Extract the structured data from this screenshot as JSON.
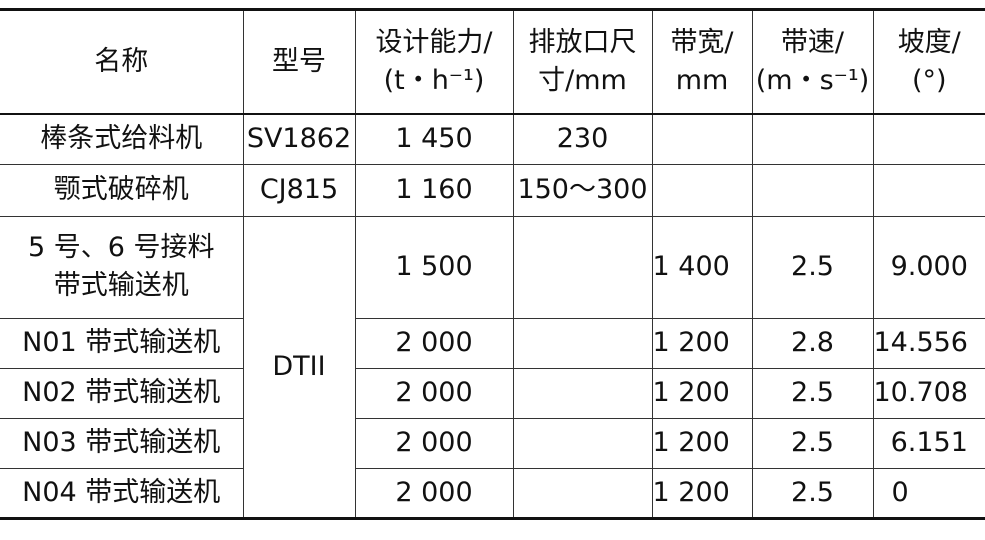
{
  "table": {
    "headers": [
      [
        "名称",
        ""
      ],
      [
        "型号",
        ""
      ],
      [
        "设计能力/",
        "(t・h⁻¹)"
      ],
      [
        "排放口尺",
        "寸/mm"
      ],
      [
        "带宽/",
        "mm"
      ],
      [
        "带速/",
        "(m・s⁻¹)"
      ],
      [
        "坡度/",
        "(°)"
      ]
    ],
    "rows": [
      {
        "name": [
          "棒条式给料机"
        ],
        "model": "SV1862",
        "capacity": "1 450",
        "outlet": "230",
        "width": "",
        "speed": "",
        "slope": ""
      },
      {
        "name": [
          "颚式破碎机"
        ],
        "model": "CJ815",
        "capacity": "1 160",
        "outlet": "150～300",
        "width": "",
        "speed": "",
        "slope": ""
      },
      {
        "name": [
          "5 号、6 号接料",
          "带式输送机"
        ],
        "model": "DTII",
        "capacity": "1 500",
        "outlet": "",
        "width": "1 400",
        "speed": "2.5",
        "slope": "9.000"
      },
      {
        "name": [
          "N01 带式输送机"
        ],
        "capacity": "2 000",
        "outlet": "",
        "width": "1 200",
        "speed": "2.8",
        "slope": "14.556"
      },
      {
        "name": [
          "N02 带式输送机"
        ],
        "capacity": "2 000",
        "outlet": "",
        "width": "1 200",
        "speed": "2.5",
        "slope": "10.708"
      },
      {
        "name": [
          "N03 带式输送机"
        ],
        "capacity": "2 000",
        "outlet": "",
        "width": "1 200",
        "speed": "2.5",
        "slope": "6.151"
      },
      {
        "name": [
          "N04 带式输送机"
        ],
        "capacity": "2 000",
        "outlet": "",
        "width": "1 200",
        "speed": "2.5",
        "slope": "0"
      }
    ]
  }
}
